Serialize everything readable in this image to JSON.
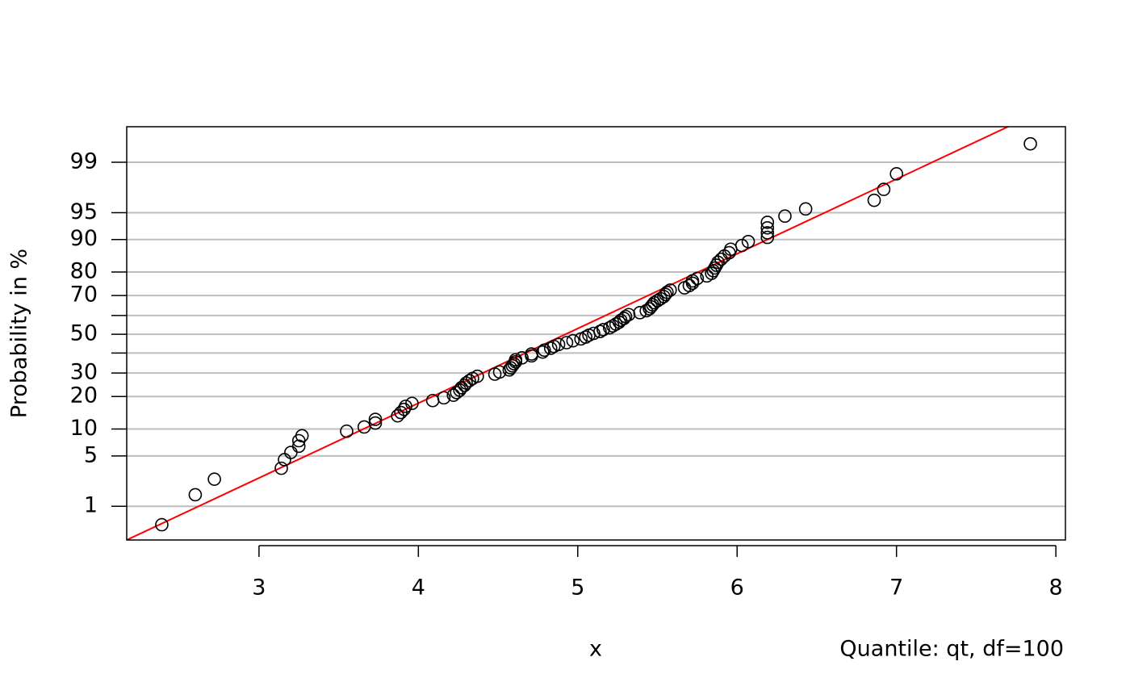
{
  "chart_data": {
    "type": "probability-plot",
    "x_label": "x",
    "y_label": "Probability in %",
    "caption": "Quantile: qt, df=100",
    "y_scale": "normal-quantile",
    "xlim": [
      2.17,
      8.06
    ],
    "xticks": [
      3,
      4,
      5,
      6,
      7,
      8
    ],
    "ylim": [
      0.27,
      99.75
    ],
    "yticks": [
      1,
      5,
      10,
      20,
      30,
      50,
      70,
      80,
      90,
      95,
      99
    ],
    "grid_lines": [
      1,
      5,
      10,
      20,
      30,
      40,
      50,
      60,
      70,
      80,
      90,
      95,
      99
    ],
    "grid_color": "#bebebe",
    "point_color": "#000000",
    "fit_line": {
      "color": "#ff0000",
      "x": [
        2.17,
        7.7
      ],
      "y": [
        0.27,
        99.75
      ]
    },
    "x": [
      2.39,
      2.6,
      2.72,
      3.14,
      3.16,
      3.2,
      3.25,
      3.25,
      3.27,
      3.55,
      3.66,
      3.73,
      3.73,
      3.87,
      3.89,
      3.91,
      3.92,
      3.96,
      4.09,
      4.16,
      4.22,
      4.24,
      4.26,
      4.27,
      4.29,
      4.3,
      4.32,
      4.34,
      4.37,
      4.48,
      4.51,
      4.57,
      4.58,
      4.59,
      4.6,
      4.61,
      4.61,
      4.65,
      4.71,
      4.71,
      4.78,
      4.79,
      4.83,
      4.85,
      4.88,
      4.93,
      4.97,
      5.02,
      5.05,
      5.07,
      5.1,
      5.14,
      5.16,
      5.2,
      5.22,
      5.24,
      5.26,
      5.27,
      5.29,
      5.3,
      5.32,
      5.39,
      5.43,
      5.45,
      5.46,
      5.47,
      5.48,
      5.5,
      5.52,
      5.54,
      5.55,
      5.56,
      5.58,
      5.67,
      5.7,
      5.72,
      5.72,
      5.75,
      5.81,
      5.84,
      5.85,
      5.86,
      5.87,
      5.88,
      5.9,
      5.92,
      5.95,
      5.96,
      6.03,
      6.07,
      6.19,
      6.19,
      6.19,
      6.19,
      6.3,
      6.43,
      6.86,
      6.92,
      7.0,
      7.84
    ],
    "values": [
      0.5,
      1.5,
      2.5,
      3.5,
      4.5,
      5.5,
      6.5,
      7.5,
      8.5,
      9.5,
      10.5,
      11.5,
      12.5,
      13.5,
      14.5,
      15.5,
      16.5,
      17.5,
      18.5,
      19.5,
      20.5,
      21.5,
      22.5,
      23.5,
      24.5,
      25.5,
      26.5,
      27.5,
      28.5,
      29.5,
      30.5,
      31.5,
      32.5,
      33.5,
      34.5,
      35.5,
      36.5,
      37.5,
      38.5,
      39.5,
      40.5,
      41.5,
      42.5,
      43.5,
      44.5,
      45.5,
      46.5,
      47.5,
      48.5,
      49.5,
      50.5,
      51.5,
      52.5,
      53.5,
      54.5,
      55.5,
      56.5,
      57.5,
      58.5,
      59.5,
      60.5,
      61.5,
      62.5,
      63.5,
      64.5,
      65.5,
      66.5,
      67.5,
      68.5,
      69.5,
      70.5,
      71.5,
      72.5,
      73.5,
      74.5,
      75.5,
      76.5,
      77.5,
      78.5,
      79.5,
      80.5,
      81.5,
      82.5,
      83.5,
      84.5,
      85.5,
      86.5,
      87.5,
      88.5,
      89.5,
      90.5,
      91.5,
      92.5,
      93.5,
      94.5,
      95.5,
      96.5,
      97.5,
      98.5,
      99.5
    ]
  }
}
